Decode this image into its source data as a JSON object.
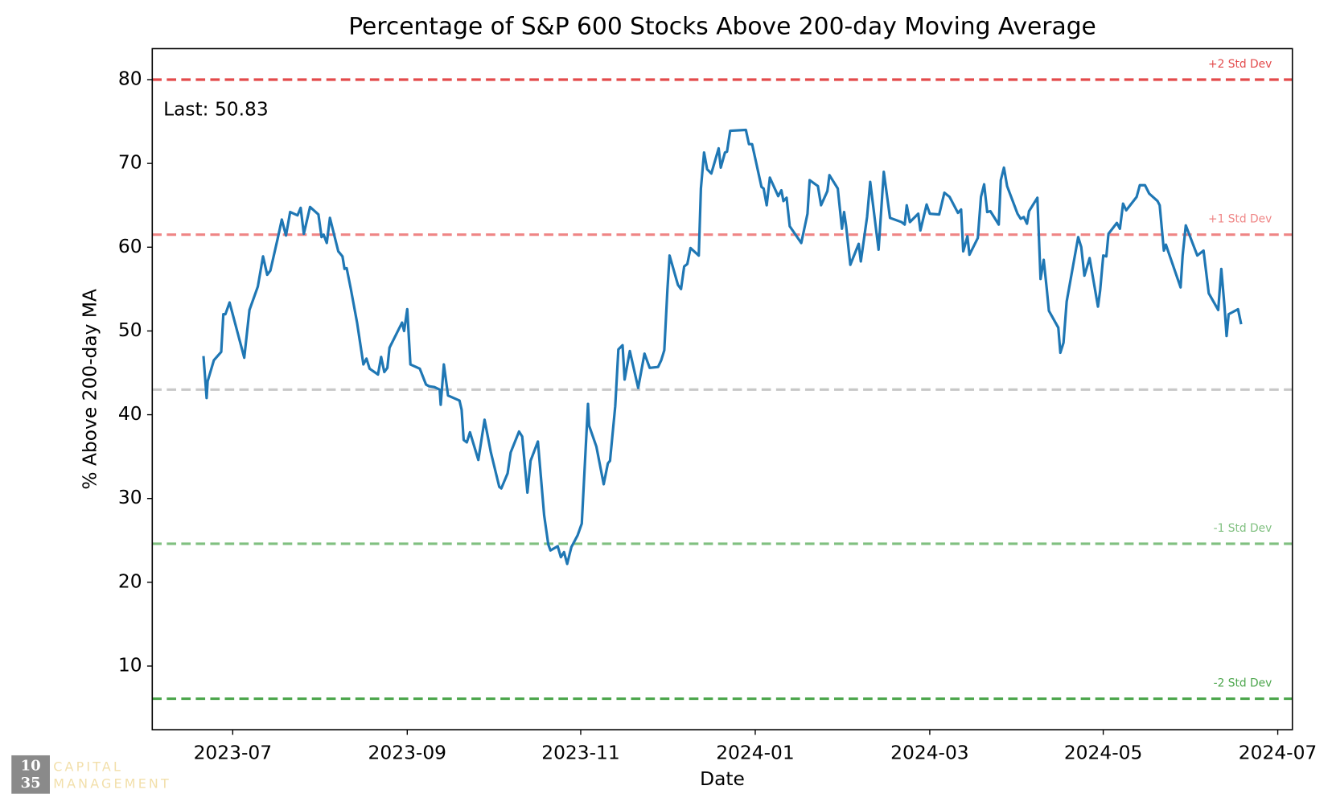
{
  "chart_data": {
    "type": "line",
    "title": "Percentage of S&P 600 Stocks Above 200-day Moving Average",
    "x_label": "Date",
    "y_label": "% Above 200-day MA",
    "annotation": "Last: 50.83",
    "color": "#1f77b4",
    "grid": false,
    "xlim": [
      2023.423,
      2024.514
    ],
    "ylim": [
      2.4,
      83.7
    ],
    "xticks": [
      {
        "value": 2023.5,
        "label": "2023-07"
      },
      {
        "value": 2023.667,
        "label": "2023-09"
      },
      {
        "value": 2023.833,
        "label": "2023-11"
      },
      {
        "value": 2024.0,
        "label": "2024-01"
      },
      {
        "value": 2024.167,
        "label": "2024-03"
      },
      {
        "value": 2024.333,
        "label": "2024-05"
      },
      {
        "value": 2024.5,
        "label": "2024-07"
      }
    ],
    "yticks": [
      10,
      20,
      30,
      40,
      50,
      60,
      70,
      80
    ],
    "reference_lines": [
      {
        "value": 80,
        "label": "+2 Std Dev",
        "color": "#e34a4b"
      },
      {
        "value": 61.5,
        "label": "+1 Std Dev",
        "color": "#ef8585"
      },
      {
        "value": 43.0,
        "color": "#c8c8c8"
      },
      {
        "value": 24.6,
        "label": "-1 Std Dev",
        "color": "#80c080"
      },
      {
        "value": 6.1,
        "label": "-2 Std Dev",
        "color": "#4ca64c"
      }
    ],
    "x": [
      2023.472,
      2023.475,
      2023.476,
      2023.482,
      2023.489,
      2023.491,
      2023.493,
      2023.497,
      2023.511,
      2023.516,
      2023.524,
      2023.529,
      2023.533,
      2023.536,
      2023.543,
      2023.547,
      2023.551,
      2023.555,
      2023.562,
      2023.565,
      2023.568,
      2023.574,
      2023.582,
      2023.585,
      2023.587,
      2023.59,
      2023.593,
      2023.601,
      2023.605,
      2023.607,
      2023.609,
      2023.613,
      2023.619,
      2023.625,
      2023.628,
      2023.631,
      2023.639,
      2023.642,
      2023.645,
      2023.648,
      2023.65,
      2023.658,
      2023.662,
      2023.664,
      2023.667,
      2023.67,
      2023.679,
      2023.685,
      2023.688,
      2023.693,
      2023.698,
      2023.699,
      2023.702,
      2023.706,
      2023.717,
      2023.719,
      2023.721,
      2023.724,
      2023.727,
      2023.735,
      2023.741,
      2023.747,
      2023.755,
      2023.757,
      2023.763,
      2023.766,
      2023.774,
      2023.777,
      2023.782,
      2023.785,
      2023.792,
      2023.798,
      2023.802,
      2023.804,
      2023.811,
      2023.814,
      2023.817,
      2023.82,
      2023.824,
      2023.83,
      2023.834,
      2023.84,
      2023.841,
      2023.848,
      2023.855,
      2023.859,
      2023.861,
      2023.866,
      2023.869,
      2023.873,
      2023.875,
      2023.88,
      2023.888,
      2023.894,
      2023.899,
      2023.907,
      2023.91,
      2023.913,
      2023.916,
      2023.918,
      2023.926,
      2023.929,
      2023.932,
      2023.935,
      2023.938,
      2023.946,
      2023.948,
      2023.951,
      2023.954,
      2023.958,
      2023.965,
      2023.967,
      2023.971,
      2023.973,
      2023.976,
      2023.991,
      2023.994,
      2023.997,
      2024.006,
      2024.008,
      2024.011,
      2024.014,
      2024.022,
      2024.025,
      2024.027,
      2024.03,
      2024.033,
      2024.044,
      2024.05,
      2024.052,
      2024.06,
      2024.063,
      2024.069,
      2024.071,
      2024.079,
      2024.083,
      2024.085,
      2024.087,
      2024.091,
      2024.099,
      2024.101,
      2024.107,
      2024.11,
      2024.118,
      2024.123,
      2024.129,
      2024.14,
      2024.143,
      2024.145,
      2024.148,
      2024.156,
      2024.158,
      2024.164,
      2024.167,
      2024.176,
      2024.181,
      2024.186,
      2024.194,
      2024.197,
      2024.199,
      2024.203,
      2024.205,
      2024.213,
      2024.216,
      2024.219,
      2024.222,
      2024.225,
      2024.233,
      2024.235,
      2024.238,
      2024.241,
      2024.251,
      2024.254,
      2024.257,
      2024.26,
      2024.262,
      2024.27,
      2024.273,
      2024.276,
      2024.279,
      2024.281,
      2024.29,
      2024.292,
      2024.295,
      2024.298,
      2024.309,
      2024.312,
      2024.315,
      2024.32,
      2024.328,
      2024.33,
      2024.333,
      2024.336,
      2024.338,
      2024.346,
      2024.349,
      2024.352,
      2024.355,
      2024.365,
      2024.368,
      2024.373,
      2024.377,
      2024.385,
      2024.387,
      2024.391,
      2024.393,
      2024.407,
      2024.409,
      2024.412,
      2024.423,
      2024.429,
      2024.434,
      2024.443,
      2024.446,
      2024.449,
      2024.451,
      2024.453,
      2024.462,
      2024.465
    ],
    "values": [
      47,
      42,
      44,
      46.5,
      47.5,
      52,
      52,
      53.4,
      46.8,
      52.5,
      55.3,
      58.9,
      56.7,
      57.2,
      61,
      63.3,
      61.4,
      64.2,
      63.8,
      64.7,
      61.6,
      64.8,
      63.9,
      61.2,
      61.5,
      60.5,
      63.5,
      59.5,
      58.9,
      57.4,
      57.5,
      55,
      51,
      46,
      46.7,
      45.5,
      44.8,
      46.9,
      45.1,
      45.6,
      48,
      50,
      51,
      50,
      52.6,
      46,
      45.5,
      43.6,
      43.4,
      43.3,
      43,
      41.2,
      46,
      42.3,
      41.7,
      40.6,
      37,
      36.7,
      37.9,
      34.6,
      39.4,
      35.5,
      31.4,
      31.2,
      33,
      35.5,
      38,
      37.4,
      30.7,
      34.5,
      36.8,
      28,
      24.5,
      23.8,
      24.3,
      23,
      23.6,
      22.2,
      24.2,
      25.6,
      27,
      41.3,
      38.7,
      36.2,
      31.7,
      34.2,
      34.5,
      41,
      47.8,
      48.3,
      44.2,
      47.6,
      43.2,
      47.3,
      45.6,
      45.7,
      46.5,
      47.7,
      55,
      59,
      55.5,
      55,
      57.7,
      58,
      59.9,
      59,
      67,
      71.3,
      69.3,
      68.8,
      71.8,
      69.5,
      71.3,
      71.4,
      73.9,
      74,
      72.3,
      72.3,
      67.2,
      67,
      65,
      68.3,
      66.1,
      66.8,
      65.5,
      65.9,
      62.5,
      60.5,
      64,
      68,
      67.3,
      65,
      66.7,
      68.6,
      67,
      62.2,
      64.2,
      62.5,
      57.9,
      60.4,
      58.3,
      63.6,
      67.8,
      59.7,
      69,
      63.5,
      63,
      62.7,
      65,
      63,
      64,
      62,
      65.1,
      64,
      63.9,
      66.5,
      66,
      64.1,
      64.5,
      59.5,
      61.3,
      59.1,
      61.1,
      66,
      67.5,
      64.2,
      64.3,
      62.7,
      68,
      69.5,
      67.3,
      64,
      63.4,
      63.6,
      62.8,
      64.3,
      65.9,
      56.2,
      58.5,
      55,
      52.4,
      50.4,
      47.4,
      48.6,
      53.5,
      61.2,
      60,
      56.6,
      58.7,
      52.9,
      54.8,
      59,
      58.9,
      61.6,
      62.9,
      62.2,
      65.2,
      64.4,
      66,
      67.4,
      67.4,
      66.4,
      65.5,
      65,
      59.6,
      60.3,
      55.2,
      59,
      62.6,
      59,
      59.6,
      54.5,
      52.5,
      57.4,
      53,
      49.4,
      52,
      52.6,
      50.8
    ]
  },
  "logo": {
    "mark": [
      "10",
      "35"
    ],
    "text": [
      "CAPITAL",
      "MANAGEMENT"
    ]
  }
}
